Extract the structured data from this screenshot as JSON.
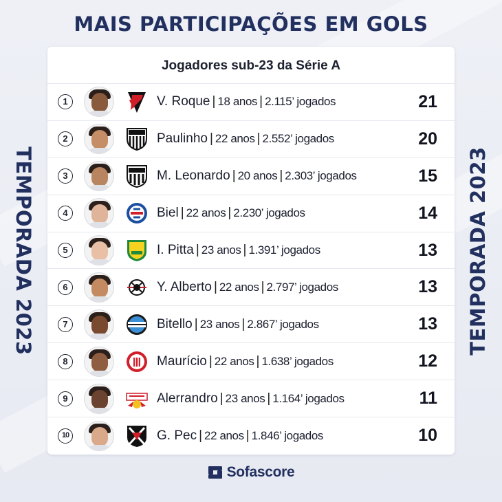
{
  "header": {
    "title": "MAIS PARTICIPAÇÕES EM GOLS",
    "side_label": "TEMPORADA 2023"
  },
  "card": {
    "subtitle": "Jogadores sub-23 da Série A"
  },
  "players": [
    {
      "rank": "1",
      "name": "V. Roque",
      "age": "18 anos",
      "minutes": "2.115’ jogados",
      "score": "21",
      "club_icon": "athletico-pr-crest-icon"
    },
    {
      "rank": "2",
      "name": "Paulinho",
      "age": "22 anos",
      "minutes": "2.552’ jogados",
      "score": "20",
      "club_icon": "atletico-mg-crest-icon"
    },
    {
      "rank": "3",
      "name": "M. Leonardo",
      "age": "20 anos",
      "minutes": "2.303’ jogados",
      "score": "15",
      "club_icon": "santos-crest-icon"
    },
    {
      "rank": "4",
      "name": "Biel",
      "age": "22 anos",
      "minutes": "2.230’ jogados",
      "score": "14",
      "club_icon": "bahia-crest-icon"
    },
    {
      "rank": "5",
      "name": "I. Pitta",
      "age": "23 anos",
      "minutes": "1.391’ jogados",
      "score": "13",
      "club_icon": "cuiaba-crest-icon"
    },
    {
      "rank": "6",
      "name": "Y. Alberto",
      "age": "22 anos",
      "minutes": "2.797’ jogados",
      "score": "13",
      "club_icon": "corinthians-crest-icon"
    },
    {
      "rank": "7",
      "name": "Bitello",
      "age": "23 anos",
      "minutes": "2.867’ jogados",
      "score": "13",
      "club_icon": "gremio-crest-icon"
    },
    {
      "rank": "8",
      "name": "Maurício",
      "age": "22 anos",
      "minutes": "1.638’ jogados",
      "score": "12",
      "club_icon": "internacional-crest-icon"
    },
    {
      "rank": "9",
      "name": "Alerrandro",
      "age": "23 anos",
      "minutes": "1.164’ jogados",
      "score": "11",
      "club_icon": "bragantino-crest-icon"
    },
    {
      "rank": "10",
      "name": "G. Pec",
      "age": "22 anos",
      "minutes": "1.846’ jogados",
      "score": "10",
      "club_icon": "vasco-crest-icon"
    }
  ],
  "footer": {
    "brand": "Sofascore",
    "brand_icon": "sofascore-logo-icon"
  },
  "colors": {
    "navy": "#22305f",
    "background": "#eef0f6",
    "card": "#ffffff"
  }
}
